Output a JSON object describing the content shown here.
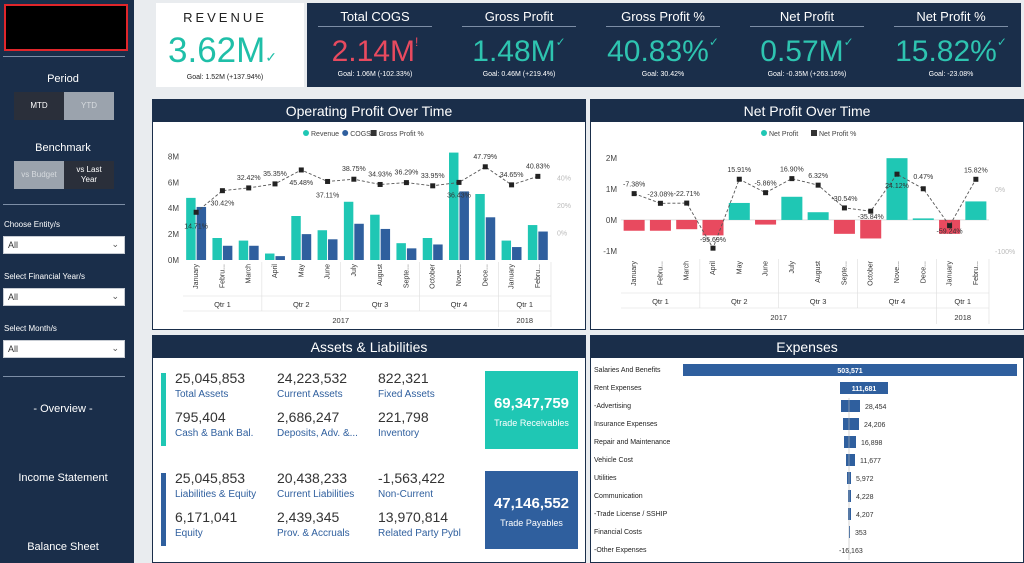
{
  "sidebar": {
    "period_title": "Period",
    "mtd": "MTD",
    "ytd": "YTD",
    "benchmark_title": "Benchmark",
    "vs_budget": "vs Budget",
    "vs_last_year": "vs Last Year",
    "entity_label": "Choose Entity/s",
    "entity_value": "All",
    "year_label": "Select Financial Year/s",
    "year_value": "All",
    "month_label": "Select Month/s",
    "month_value": "All",
    "nav_overview": "- Overview -",
    "nav_income": "Income Statement",
    "nav_balance": "Balance Sheet"
  },
  "kpis": {
    "revenue": {
      "title": "REVENUE",
      "value": "3.62M",
      "goal": "Goal: 1.52M (+137.94%)",
      "color": "#1fbfa8"
    },
    "items": [
      {
        "title": "Total COGS",
        "value": "2.14M",
        "goal": "Goal: 1.06M (-102.33%)",
        "color": "#e84a5f",
        "mark": "!"
      },
      {
        "title": "Gross Profit",
        "value": "1.48M",
        "goal": "Goal: 0.46M (+219.4%)",
        "color": "#2ec4b0",
        "mark": "✓"
      },
      {
        "title": "Gross Profit %",
        "value": "40.83%",
        "goal": "Goal: 30.42%",
        "color": "#2ec4b0",
        "mark": "✓"
      },
      {
        "title": "Net Profit",
        "value": "0.57M",
        "goal": "Goal: -0.35M (+263.16%)",
        "color": "#2ec4b0",
        "mark": "✓"
      },
      {
        "title": "Net Profit %",
        "value": "15.82%",
        "goal": "Goal: -23.08%",
        "color": "#2ec4b0",
        "mark": "✓"
      }
    ]
  },
  "panels": {
    "op_title": "Operating Profit Over Time",
    "np_title": "Net Profit Over Time",
    "al_title": "Assets & Liabilities",
    "exp_title": "Expenses"
  },
  "chart_data": [
    {
      "type": "bar",
      "title": "Operating Profit Over Time",
      "legend": [
        "Revenue",
        "COGS",
        "Gross Profit %"
      ],
      "legend_position": "top",
      "colors": {
        "Revenue": "#1fc7b4",
        "COGS": "#2f5f9e",
        "Gross Profit %": "#333333"
      },
      "categories": [
        "January",
        "Febru...",
        "March",
        "April",
        "May",
        "June",
        "July",
        "August",
        "Septe...",
        "October",
        "Nove...",
        "Dece...",
        "January",
        "Febru..."
      ],
      "quarters": [
        {
          "label": "Qtr 1",
          "span": 3
        },
        {
          "label": "Qtr 2",
          "span": 3
        },
        {
          "label": "Qtr 3",
          "span": 3
        },
        {
          "label": "Qtr 4",
          "span": 3
        },
        {
          "label": "Qtr 1",
          "span": 2
        }
      ],
      "years": [
        {
          "label": "2017",
          "span": 12
        },
        {
          "label": "2018",
          "span": 2
        }
      ],
      "series": [
        {
          "name": "Revenue",
          "values": [
            4.8,
            1.7,
            1.5,
            0.5,
            3.4,
            2.3,
            4.5,
            3.5,
            1.3,
            1.7,
            8.3,
            5.1,
            1.5,
            2.7
          ]
        },
        {
          "name": "COGS",
          "values": [
            4.1,
            1.1,
            1.1,
            0.3,
            2.0,
            1.6,
            2.8,
            2.4,
            0.9,
            1.2,
            5.3,
            3.3,
            1.0,
            2.2
          ]
        },
        {
          "name": "Gross Profit %",
          "values": [
            14.71,
            30.42,
            32.42,
            35.35,
            45.48,
            37.11,
            38.75,
            34.93,
            36.29,
            33.95,
            36.43,
            47.79,
            34.65,
            40.83
          ]
        }
      ],
      "y_ticks": [
        "0M",
        "2M",
        "4M",
        "6M",
        "8M"
      ],
      "ylim": [
        0,
        8.5
      ],
      "y2_ticks": [
        "0%",
        "20%",
        "40%"
      ],
      "y2lim": [
        -20,
        60
      ],
      "point_labels": [
        "14.71%",
        "30.42%",
        "32.42%",
        "35.35%",
        "45.48%",
        "37.11%",
        "38.75%",
        "34.93%",
        "36.29%",
        "33.95%",
        "36.43%",
        "47.79%",
        "34.65%",
        "40.83%"
      ]
    },
    {
      "type": "bar",
      "title": "Net Profit Over Time",
      "legend": [
        "Net Profit",
        "Net Profit %"
      ],
      "legend_position": "top",
      "colors": {
        "positive": "#1fc7b4",
        "negative": "#e84a5f",
        "Net Profit %": "#333333"
      },
      "categories": [
        "January",
        "Febru...",
        "March",
        "April",
        "May",
        "June",
        "July",
        "August",
        "Septe...",
        "October",
        "Nove...",
        "Dece...",
        "January",
        "Febru..."
      ],
      "quarters": [
        {
          "label": "Qtr 1",
          "span": 3
        },
        {
          "label": "Qtr 2",
          "span": 3
        },
        {
          "label": "Qtr 3",
          "span": 3
        },
        {
          "label": "Qtr 4",
          "span": 3
        },
        {
          "label": "Qtr 1",
          "span": 2
        }
      ],
      "years": [
        {
          "label": "2017",
          "span": 12
        },
        {
          "label": "2018",
          "span": 2
        }
      ],
      "series": [
        {
          "name": "Net Profit",
          "values": [
            -0.35,
            -0.35,
            -0.3,
            -0.5,
            0.55,
            -0.15,
            0.75,
            0.25,
            -0.45,
            -0.6,
            2.0,
            0.05,
            -0.45,
            0.6
          ]
        },
        {
          "name": "Net Profit %",
          "values": [
            -7.38,
            -23.08,
            -22.71,
            -95.69,
            15.91,
            -5.86,
            16.9,
            6.32,
            -30.54,
            -35.84,
            24.12,
            0.47,
            -59.24,
            15.82
          ]
        }
      ],
      "y_ticks": [
        "-1M",
        "0M",
        "1M",
        "2M"
      ],
      "ylim": [
        -1.2,
        2.2
      ],
      "y2_ticks": [
        "-100%",
        "0%"
      ],
      "y2lim": [
        -110,
        60
      ],
      "point_labels": [
        "-7.38%",
        "-23.08%",
        "-22.71%",
        "-95.69%",
        "15.91%",
        "-5.86%",
        "16.90%",
        "6.32%",
        "-30.54%",
        "-35.84%",
        "24.12%",
        "0.47%",
        "-59.24%",
        "15.82%"
      ]
    },
    {
      "type": "bar",
      "title": "Expenses",
      "orientation": "horizontal",
      "color": "#2f5f9e",
      "categories": [
        "Salaries And Benefits",
        "Rent Expenses",
        "-Advertising",
        "Insurance Expenses",
        "Repair and Maintenance",
        "Vehicle Cost",
        "Utilities",
        "Communication",
        "-Trade License / SSHIP",
        "Financial Costs",
        "-Other Expenses"
      ],
      "values": [
        503571,
        111681,
        28454,
        24206,
        16898,
        11677,
        5972,
        4228,
        4207,
        353,
        -16163
      ],
      "labels": [
        "503,571",
        "111,681",
        "28,454",
        "24,206",
        "16,898",
        "11,677",
        "5,972",
        "4,228",
        "4,207",
        "353",
        "-16,163"
      ]
    }
  ],
  "assets_liabilities": {
    "assets": [
      {
        "value": "25,045,853",
        "label": "Total Assets"
      },
      {
        "value": "24,223,532",
        "label": "Current Assets"
      },
      {
        "value": "822,321",
        "label": "Fixed Assets"
      },
      {
        "value": "795,404",
        "label": "Cash & Bank Bal."
      },
      {
        "value": "2,686,247",
        "label": "Deposits, Adv. &..."
      },
      {
        "value": "221,798",
        "label": "Inventory"
      }
    ],
    "liabilities": [
      {
        "value": "25,045,853",
        "label": "Liabilities & Equity"
      },
      {
        "value": "20,438,233",
        "label": "Current Liabilities"
      },
      {
        "value": "-1,563,422",
        "label": "Non-Current"
      },
      {
        "value": "6,171,041",
        "label": "Equity"
      },
      {
        "value": "2,439,345",
        "label": "Prov. & Accruals"
      },
      {
        "value": "13,970,814",
        "label": "Related Party Pybl"
      }
    ],
    "receivables": {
      "value": "69,347,759",
      "label": "Trade Receivables",
      "color": "#1fc7b4"
    },
    "payables": {
      "value": "47,146,552",
      "label": "Trade Payables",
      "color": "#2f5f9e"
    }
  }
}
